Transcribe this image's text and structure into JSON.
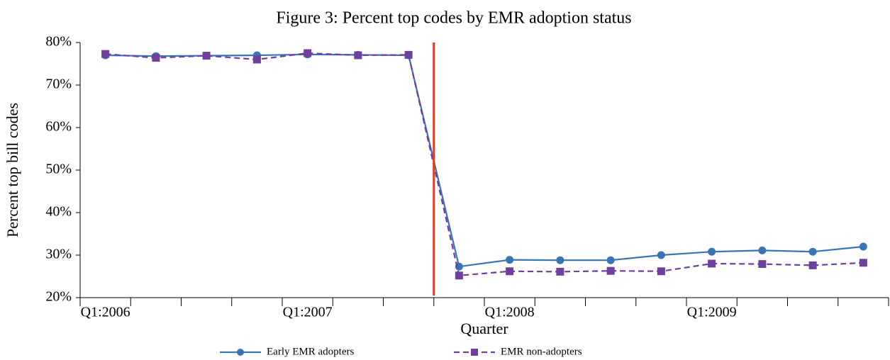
{
  "chart_data": {
    "type": "line",
    "title": "Figure 3: Percent top codes by EMR adoption status",
    "x_label": "Quarter",
    "y_label": "Percent top bill codes",
    "categories": [
      "Q1:2006",
      null,
      null,
      null,
      "Q1:2007",
      null,
      null,
      null,
      "Q1:2008",
      null,
      null,
      null,
      "Q1:2009",
      null,
      null,
      null
    ],
    "series": [
      {
        "name": "Early EMR adopters",
        "color": "#3a74b8",
        "marker": "circle",
        "dash": "solid",
        "values": [
          77.0,
          76.8,
          76.9,
          77.0,
          77.2,
          77.1,
          77.0,
          27.3,
          28.9,
          28.8,
          28.8,
          30.0,
          30.8,
          31.1,
          30.8,
          32.0
        ]
      },
      {
        "name": "EMR non-adopters",
        "color": "#6f3f9e",
        "marker": "square",
        "dash": "dashed",
        "values": [
          77.3,
          76.4,
          76.9,
          76.0,
          77.5,
          77.0,
          77.1,
          25.2,
          26.2,
          26.1,
          26.3,
          26.2,
          28.0,
          27.9,
          27.6,
          28.2
        ]
      }
    ],
    "ylim": [
      20,
      80
    ],
    "yticks": [
      {
        "value": 20,
        "label": "20%"
      },
      {
        "value": 30,
        "label": "30%"
      },
      {
        "value": 40,
        "label": "40%"
      },
      {
        "value": 50,
        "label": "50%"
      },
      {
        "value": 60,
        "label": "60%"
      },
      {
        "value": 70,
        "label": "70%"
      },
      {
        "value": 80,
        "label": "80%"
      }
    ],
    "vline": {
      "after_category": 6,
      "color": "#e03a25"
    },
    "grid": false,
    "legend": "bottom"
  }
}
